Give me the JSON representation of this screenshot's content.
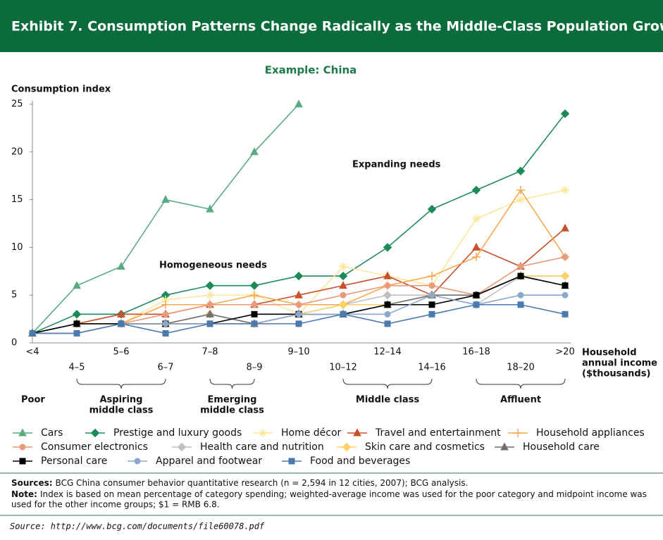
{
  "chart_data": {
    "type": "line",
    "title": "Exhibit 7. Consumption Patterns Change Radically as the Middle-Class Population Grows",
    "subtitle": "Example: China",
    "ylabel": "Consumption index",
    "xlabel_lines": [
      "Household",
      "annual income",
      "($thousands)"
    ],
    "categories": [
      "<4",
      "4–5",
      "5–6",
      "6–7",
      "7–8",
      "8–9",
      "9–10",
      "10–12",
      "12–14",
      "14–16",
      "16–18",
      "18–20",
      ">20"
    ],
    "ylim": [
      0,
      25
    ],
    "yticks": [
      0,
      5,
      10,
      15,
      20,
      25
    ],
    "annotations": [
      "Expanding needs",
      "Homogeneous needs"
    ],
    "groups": [
      {
        "lines": [
          "Poor"
        ]
      },
      {
        "lines": [
          "Aspiring",
          "middle class"
        ]
      },
      {
        "lines": [
          "Emerging",
          "middle class"
        ]
      },
      {
        "lines": [
          "Middle class"
        ]
      },
      {
        "lines": [
          "Affluent"
        ]
      }
    ],
    "series": [
      {
        "name": "Cars",
        "color": "#5aaa84",
        "marker": "triangle",
        "values": [
          1,
          6,
          8,
          15,
          14,
          20,
          25,
          null,
          null,
          null,
          null,
          null,
          null
        ]
      },
      {
        "name": "Prestige and luxury goods",
        "color": "#1e8a5a",
        "marker": "diamond",
        "values": [
          1,
          3,
          3,
          5,
          6,
          6,
          7,
          7,
          10,
          14,
          16,
          18,
          24
        ]
      },
      {
        "name": "Home décor",
        "color": "#fde69a",
        "marker": "star",
        "values": [
          1,
          2,
          2,
          4.5,
          5,
          5,
          3,
          8,
          7,
          6,
          13,
          15,
          16
        ]
      },
      {
        "name": "Travel and entertainment",
        "color": "#c8502a",
        "marker": "triangle",
        "values": [
          1,
          2,
          3,
          3,
          4,
          4,
          5,
          6,
          7,
          5,
          10,
          8,
          12
        ]
      },
      {
        "name": "Household appliances",
        "color": "#f4a850",
        "marker": "plus",
        "values": [
          1,
          2,
          2,
          4,
          4,
          5,
          4,
          4,
          6,
          7,
          9,
          16,
          9
        ]
      },
      {
        "name": "Consumer electronics",
        "color": "#e89a7a",
        "marker": "circle",
        "values": [
          1,
          2,
          2,
          3,
          4,
          4,
          4,
          5,
          6,
          6,
          5,
          8,
          9
        ]
      },
      {
        "name": "Health care and nutrition",
        "color": "#c0c0c0",
        "marker": "diamond",
        "values": [
          1,
          2,
          2,
          2,
          3,
          2,
          3,
          4,
          5,
          5,
          4,
          7,
          7
        ]
      },
      {
        "name": "Skin care and cosmetics",
        "color": "#fcd266",
        "marker": "diamond",
        "values": [
          1,
          2,
          2,
          2,
          3,
          2,
          3,
          4,
          4,
          5,
          5,
          7,
          7
        ]
      },
      {
        "name": "Household care",
        "color": "#707070",
        "marker": "triangle",
        "values": [
          1,
          2,
          2,
          2,
          3,
          2,
          3,
          3,
          4,
          5,
          5,
          7,
          6
        ]
      },
      {
        "name": "Personal care",
        "color": "#000000",
        "marker": "square",
        "values": [
          1,
          2,
          2,
          2,
          2,
          3,
          3,
          3,
          4,
          4,
          5,
          7,
          6
        ]
      },
      {
        "name": "Apparel and footwear",
        "color": "#8aa8cc",
        "marker": "circle",
        "values": [
          1,
          1,
          2,
          2,
          2,
          2,
          3,
          3,
          3,
          5,
          4,
          5,
          5
        ]
      },
      {
        "name": "Food and beverages",
        "color": "#4a7ab0",
        "marker": "square",
        "values": [
          1,
          1,
          2,
          1,
          2,
          2,
          2,
          3,
          2,
          3,
          4,
          4,
          3
        ]
      }
    ],
    "sources_label": "Sources:",
    "sources": "BCG China consumer behavior quantitative research (n = 2,594 in 12 cities, 2007); BCG analysis.",
    "note_label": "Note:",
    "note_lines": [
      "Index is based on mean percentage of category spending; weighted-average income was used for the poor category and midpoint income was",
      "used for the other income groups; $1 = RMB 6.8."
    ],
    "source_line": "Source: http://www.bcg.com/documents/file60078.pdf"
  }
}
